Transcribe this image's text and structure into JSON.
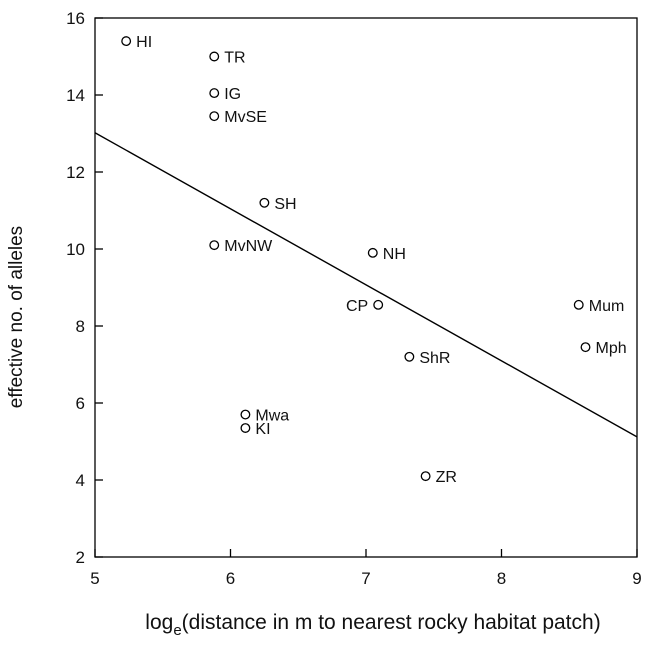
{
  "chart_data": {
    "type": "scatter",
    "title": "",
    "xlabel": "log",
    "xlabel_subscript": "e",
    "xlabel_rest": "(distance in m to nearest rocky habitat patch)",
    "ylabel": "effective no. of alleles",
    "xlim": [
      5,
      9
    ],
    "ylim": [
      2,
      16
    ],
    "xticks": [
      5,
      6,
      7,
      8,
      9
    ],
    "yticks": [
      2,
      4,
      6,
      8,
      10,
      12,
      14,
      16
    ],
    "grid": false,
    "legend": "none",
    "points": [
      {
        "label": "HI",
        "x": 5.23,
        "y": 15.4,
        "label_side": "right"
      },
      {
        "label": "TR",
        "x": 5.88,
        "y": 15.0,
        "label_side": "right"
      },
      {
        "label": "IG",
        "x": 5.88,
        "y": 14.05,
        "label_side": "right"
      },
      {
        "label": "MvSE",
        "x": 5.88,
        "y": 13.45,
        "label_side": "right"
      },
      {
        "label": "SH",
        "x": 6.25,
        "y": 11.2,
        "label_side": "right"
      },
      {
        "label": "MvNW",
        "x": 5.88,
        "y": 10.1,
        "label_side": "right"
      },
      {
        "label": "NH",
        "x": 7.05,
        "y": 9.9,
        "label_side": "right"
      },
      {
        "label": "CP",
        "x": 7.09,
        "y": 8.55,
        "label_side": "left"
      },
      {
        "label": "Mum",
        "x": 8.57,
        "y": 8.55,
        "label_side": "right"
      },
      {
        "label": "Mph",
        "x": 8.62,
        "y": 7.45,
        "label_side": "right"
      },
      {
        "label": "ShR",
        "x": 7.32,
        "y": 7.2,
        "label_side": "right"
      },
      {
        "label": "Mwa",
        "x": 6.11,
        "y": 5.7,
        "label_side": "right"
      },
      {
        "label": "KI",
        "x": 6.11,
        "y": 5.35,
        "label_side": "right"
      },
      {
        "label": "ZR",
        "x": 7.44,
        "y": 4.1,
        "label_side": "right"
      }
    ],
    "regression_line": {
      "x": [
        5,
        9
      ],
      "y": [
        13.02,
        5.12
      ]
    },
    "colors": {
      "axis": "#000000",
      "marker": "#000000",
      "line": "#000000"
    }
  }
}
